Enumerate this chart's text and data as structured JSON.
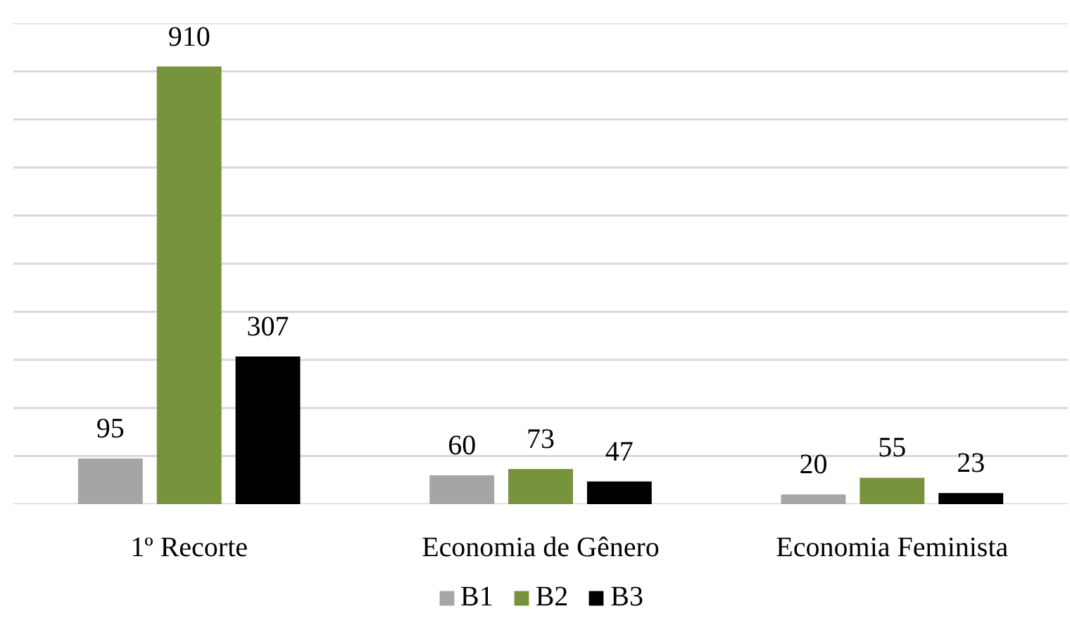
{
  "chart_data": {
    "type": "bar",
    "categories": [
      "1º Recorte",
      "Economia de Gênero",
      "Economia Feminista"
    ],
    "series": [
      {
        "name": "B1",
        "color": "#a5a5a5",
        "values": [
          95,
          60,
          20
        ]
      },
      {
        "name": "B2",
        "color": "#77933c",
        "values": [
          910,
          73,
          55
        ]
      },
      {
        "name": "B3",
        "color": "#000000",
        "values": [
          307,
          47,
          23
        ]
      }
    ],
    "ylim": [
      0,
      1000
    ],
    "yticks": [
      {
        "value": 0,
        "label": null
      },
      {
        "value": 100,
        "label": null
      },
      {
        "value": 200,
        "label": null
      },
      {
        "value": 300,
        "label": null
      },
      {
        "value": 400,
        "label": null
      },
      {
        "value": 500,
        "label": null
      },
      {
        "value": 600,
        "label": null
      },
      {
        "value": 700,
        "label": null
      },
      {
        "value": 800,
        "label": null
      },
      {
        "value": 900,
        "label": null
      },
      {
        "value": 1000,
        "label": null
      }
    ],
    "grid": "y",
    "legend": "bottom",
    "data_labels": true,
    "tick_labels": "x"
  }
}
